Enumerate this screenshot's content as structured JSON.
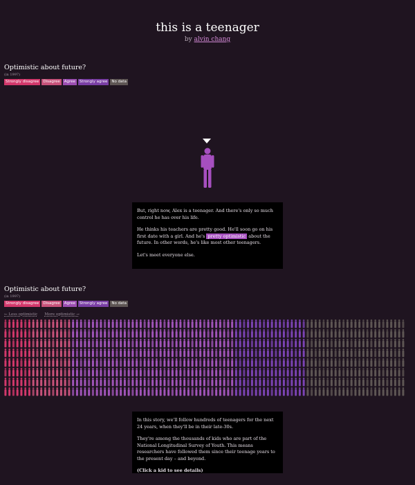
{
  "header": {
    "title": "this is a teenager",
    "by": "by",
    "author": "alvin chang"
  },
  "legend": {
    "title": "Optimistic about future?",
    "subtitle": "(in 1997)",
    "items": [
      {
        "label": "Strongly disagree",
        "color": "#d2386b"
      },
      {
        "label": "Disagree",
        "color": "#c7527a"
      },
      {
        "label": "Agree",
        "color": "#9c4fb2"
      },
      {
        "label": "Strongly agree",
        "color": "#7a3fa5"
      },
      {
        "label": "No data",
        "color": "#5e5654"
      }
    ]
  },
  "intro_box": {
    "p1": "But, right now, Alex is a teenager. And there's only so much control he has over his life.",
    "p2_before": "He thinks his teachers are pretty good. He'll soon go on his first date with a girl. And he's",
    "p2_highlight": "pretty optimistic",
    "p2_after": "about the future. In other words, he's like most other teenagers.",
    "p3": "Let's meet everyone else."
  },
  "axis": {
    "less": "← Less optimistic",
    "more": "More optimistic →"
  },
  "story_box": {
    "p1": "In this story, we'll follow hundreds of teenagers for the next 24 years, when they'll be in their late-30s.",
    "p2": "They're among the thousands of kids who are part of the National Longitudinal Survey of Youth. This means researchers have followed them since their teenage years to the present day – and beyond.",
    "cta": "(Click a kid to see details)"
  },
  "colors": {
    "background": "#1f1420",
    "highlight": "#a64fbf",
    "big_kid": "#a64fbf",
    "kid_strongly_disagree": "#d2386b",
    "kid_disagree": "#c7527a",
    "kid_agree": "#a054b8",
    "kid_strongly_agree": "#7b43b3",
    "kid_no_data": "#5e5654"
  },
  "grid": {
    "cols": 101,
    "rows": 8,
    "column_group_counts": [
      {
        "group": "strongly_disagree",
        "cols": 7
      },
      {
        "group": "disagree",
        "cols": 10
      },
      {
        "group": "agree",
        "cols": 41
      },
      {
        "group": "strongly_agree",
        "cols": 18
      },
      {
        "group": "no_data",
        "cols": 25
      }
    ]
  }
}
